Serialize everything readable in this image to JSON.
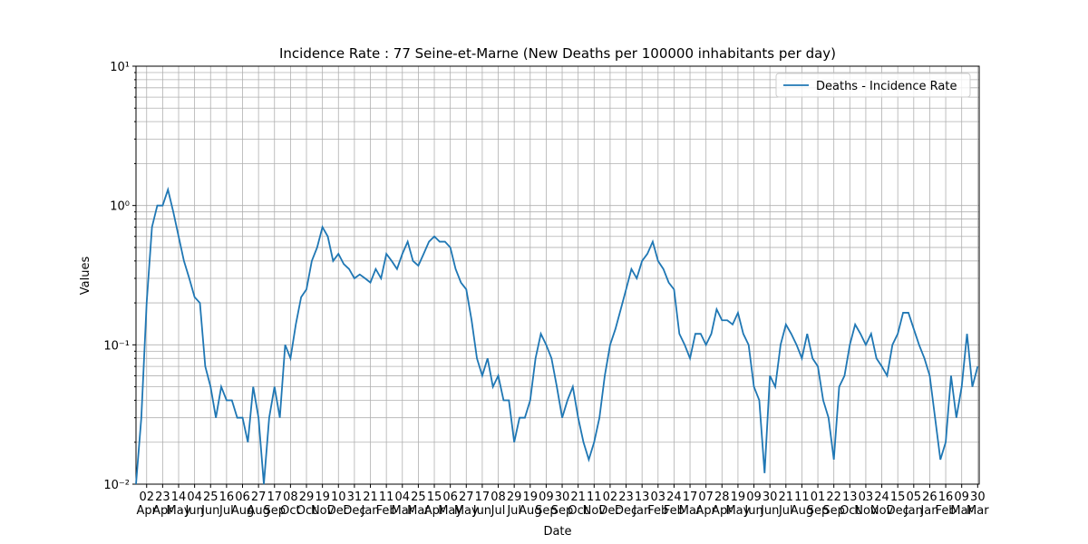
{
  "chart_data": {
    "type": "line",
    "title": "Incidence Rate : 77 Seine-et-Marne (New Deaths per 100000 inhabitants per day)",
    "xlabel": "Date",
    "ylabel": "Values",
    "log_y": true,
    "grid": true,
    "legend": "upper right",
    "x": [
      0,
      7,
      14,
      21,
      28,
      35,
      42,
      49,
      56,
      63,
      70,
      77,
      84,
      91,
      98,
      105,
      112,
      119,
      126,
      133,
      140,
      147,
      154,
      161,
      168,
      175,
      182,
      189,
      196,
      203,
      210,
      217,
      224,
      231,
      238,
      245,
      252,
      259,
      266,
      273,
      280,
      287,
      294,
      301,
      308,
      315,
      322,
      329,
      336,
      343,
      350,
      357,
      364,
      371,
      378,
      385,
      392,
      399,
      406,
      413,
      420,
      427,
      434,
      441,
      448,
      455,
      462,
      469,
      476,
      483,
      490,
      497,
      504,
      511,
      518,
      525,
      532,
      539,
      546,
      553,
      560,
      567,
      574,
      581,
      588,
      595,
      602,
      609,
      616,
      623,
      630,
      637,
      644,
      651,
      658,
      665,
      672,
      679,
      686,
      693,
      700,
      707,
      714,
      721,
      728,
      735,
      742,
      749,
      756,
      763,
      770,
      777,
      784,
      791,
      798,
      805,
      812,
      819,
      826,
      833,
      840,
      847,
      854,
      861,
      868,
      875,
      882,
      889,
      896,
      903,
      910,
      917,
      924,
      931,
      938,
      945,
      952,
      959,
      966,
      973,
      980,
      987,
      994,
      1001,
      1008,
      1015,
      1022,
      1029,
      1036,
      1043,
      1050,
      1057,
      1064,
      1071,
      1078,
      1085,
      1092,
      1099,
      1106
    ],
    "series": [
      {
        "name": "Deaths - Incidence Rate",
        "color": "#1f77b4",
        "values": [
          0.01,
          0.03,
          0.2,
          0.7,
          1.0,
          1.0,
          1.3,
          0.9,
          0.6,
          0.4,
          0.3,
          0.22,
          0.2,
          0.07,
          0.05,
          0.03,
          0.05,
          0.04,
          0.04,
          0.03,
          0.03,
          0.02,
          0.05,
          0.03,
          0.01,
          0.03,
          0.05,
          0.03,
          0.1,
          0.08,
          0.14,
          0.22,
          0.25,
          0.4,
          0.5,
          0.7,
          0.6,
          0.4,
          0.45,
          0.38,
          0.35,
          0.3,
          0.32,
          0.3,
          0.28,
          0.35,
          0.3,
          0.45,
          0.4,
          0.35,
          0.45,
          0.55,
          0.4,
          0.37,
          0.45,
          0.55,
          0.6,
          0.55,
          0.55,
          0.5,
          0.35,
          0.28,
          0.25,
          0.15,
          0.08,
          0.06,
          0.08,
          0.05,
          0.06,
          0.04,
          0.04,
          0.02,
          0.03,
          0.03,
          0.04,
          0.08,
          0.12,
          0.1,
          0.08,
          0.05,
          0.03,
          0.04,
          0.05,
          0.03,
          0.02,
          0.015,
          0.02,
          0.03,
          0.06,
          0.1,
          0.13,
          0.18,
          0.25,
          0.35,
          0.3,
          0.4,
          0.45,
          0.55,
          0.4,
          0.35,
          0.28,
          0.25,
          0.12,
          0.1,
          0.08,
          0.12,
          0.12,
          0.1,
          0.12,
          0.18,
          0.15,
          0.15,
          0.14,
          0.17,
          0.12,
          0.1,
          0.05,
          0.04,
          0.012,
          0.06,
          0.05,
          0.1,
          0.14,
          0.12,
          0.1,
          0.08,
          0.12,
          0.08,
          0.07,
          0.04,
          0.03,
          0.015,
          0.05,
          0.06,
          0.1,
          0.14,
          0.12,
          0.1,
          0.12,
          0.08,
          0.07,
          0.06,
          0.1,
          0.12,
          0.17,
          0.17,
          0.13,
          0.1,
          0.08,
          0.06,
          0.03,
          0.015,
          0.02,
          0.06,
          0.03,
          0.05,
          0.12,
          0.05,
          0.07
        ]
      }
    ],
    "xlim": [
      0,
      1108
    ],
    "xticks": [
      {
        "value": 14,
        "label": "02 Apr"
      },
      {
        "value": 35,
        "label": "23 Apr"
      },
      {
        "value": 56,
        "label": "14 May"
      },
      {
        "value": 77,
        "label": "04 Jun"
      },
      {
        "value": 98,
        "label": "25 Jun"
      },
      {
        "value": 119,
        "label": "16 Jul"
      },
      {
        "value": 140,
        "label": "06 Aug"
      },
      {
        "value": 161,
        "label": "27 Aug"
      },
      {
        "value": 182,
        "label": "17 Sep"
      },
      {
        "value": 203,
        "label": "08 Oct"
      },
      {
        "value": 224,
        "label": "29 Oct"
      },
      {
        "value": 245,
        "label": "19 Nov"
      },
      {
        "value": 266,
        "label": "10 Dec"
      },
      {
        "value": 287,
        "label": "31 Dec"
      },
      {
        "value": 308,
        "label": "21 Jan"
      },
      {
        "value": 329,
        "label": "11 Feb"
      },
      {
        "value": 350,
        "label": "04 Mar"
      },
      {
        "value": 371,
        "label": "25 Mar"
      },
      {
        "value": 392,
        "label": "15 Apr"
      },
      {
        "value": 413,
        "label": "06 May"
      },
      {
        "value": 434,
        "label": "27 May"
      },
      {
        "value": 455,
        "label": "17 Jun"
      },
      {
        "value": 476,
        "label": "08 Jul"
      },
      {
        "value": 497,
        "label": "29 Jul"
      },
      {
        "value": 518,
        "label": "19 Aug"
      },
      {
        "value": 539,
        "label": "09 Sep"
      },
      {
        "value": 560,
        "label": "30 Sep"
      },
      {
        "value": 581,
        "label": "21 Oct"
      },
      {
        "value": 602,
        "label": "11 Nov"
      },
      {
        "value": 623,
        "label": "02 Dec"
      },
      {
        "value": 644,
        "label": "23 Dec"
      },
      {
        "value": 665,
        "label": "13 Jan"
      },
      {
        "value": 686,
        "label": "03 Feb"
      },
      {
        "value": 707,
        "label": "24 Feb"
      },
      {
        "value": 728,
        "label": "17 Mar"
      },
      {
        "value": 749,
        "label": "07 Apr"
      },
      {
        "value": 770,
        "label": "28 Apr"
      },
      {
        "value": 791,
        "label": "19 May"
      },
      {
        "value": 812,
        "label": "09 Jun"
      },
      {
        "value": 833,
        "label": "30 Jun"
      },
      {
        "value": 854,
        "label": "21 Jul"
      },
      {
        "value": 875,
        "label": "11 Aug"
      },
      {
        "value": 896,
        "label": "01 Sep"
      },
      {
        "value": 917,
        "label": "22 Sep"
      },
      {
        "value": 938,
        "label": "13 Oct"
      },
      {
        "value": 959,
        "label": "03 Nov"
      },
      {
        "value": 980,
        "label": "24 Nov"
      },
      {
        "value": 1001,
        "label": "15 Dec"
      },
      {
        "value": 1022,
        "label": "05 Jan"
      },
      {
        "value": 1043,
        "label": "26 Jan"
      },
      {
        "value": 1064,
        "label": "16 Feb"
      },
      {
        "value": 1085,
        "label": "09 Mar"
      },
      {
        "value": 1106,
        "label": "30 Mar"
      }
    ],
    "ylim": [
      0.01,
      10
    ],
    "yticks": [
      {
        "value": 0.01,
        "label": "10⁻²"
      },
      {
        "value": 0.1,
        "label": "10⁻¹"
      },
      {
        "value": 1,
        "label": "10⁰"
      },
      {
        "value": 10,
        "label": "10¹"
      }
    ],
    "yminorticks": [
      0.02,
      0.03,
      0.04,
      0.05,
      0.06,
      0.07,
      0.08,
      0.09,
      0.2,
      0.3,
      0.4,
      0.5,
      0.6,
      0.7,
      0.8,
      0.9,
      2,
      3,
      4,
      5,
      6,
      7,
      8,
      9
    ]
  }
}
